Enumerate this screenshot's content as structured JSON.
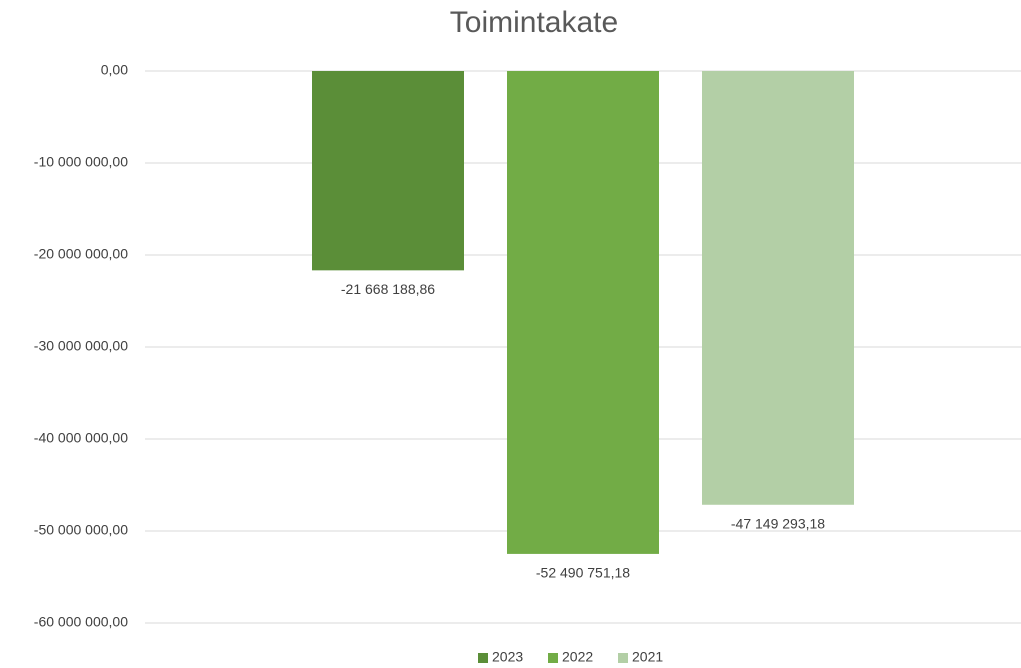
{
  "chart_data": {
    "type": "bar",
    "title": "Toimintakate",
    "categories": [
      null
    ],
    "series": [
      {
        "name": "2023",
        "color": "#5b8e38",
        "values": [
          -21668188.86
        ],
        "value_labels": [
          "-21 668 188,86"
        ]
      },
      {
        "name": "2022",
        "color": "#72ac46",
        "values": [
          -52490751.18
        ],
        "value_labels": [
          "-52 490 751,18"
        ]
      },
      {
        "name": "2021",
        "color": "#b3cfa6",
        "values": [
          -47149293.18
        ],
        "value_labels": [
          "-47 149 293,18"
        ]
      }
    ],
    "ylim": [
      -60000000,
      0
    ],
    "yticks": [
      {
        "value": 0,
        "label": "0,00"
      },
      {
        "value": -10000000,
        "label": "-10 000 000,00"
      },
      {
        "value": -20000000,
        "label": "-20 000 000,00"
      },
      {
        "value": -30000000,
        "label": "-30 000 000,00"
      },
      {
        "value": -40000000,
        "label": "-40 000 000,00"
      },
      {
        "value": -50000000,
        "label": "-50 000 000,00"
      },
      {
        "value": -60000000,
        "label": "-60 000 000,00"
      }
    ],
    "grid": true,
    "legend": "bottom"
  }
}
